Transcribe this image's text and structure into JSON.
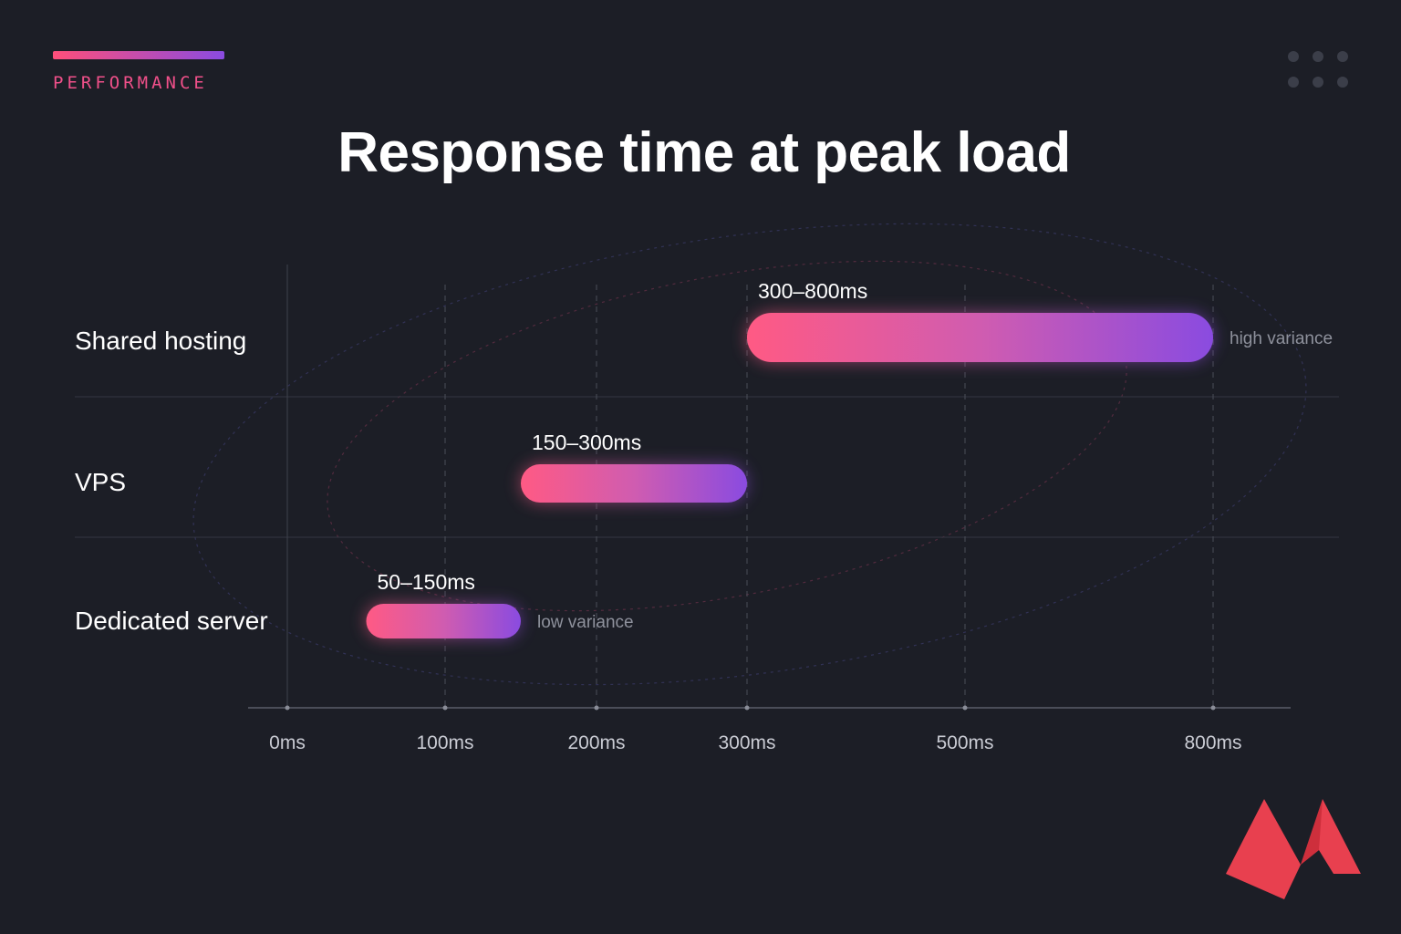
{
  "header": {
    "eyebrow": "PERFORMANCE",
    "title": "Response time at peak load"
  },
  "colors": {
    "background": "#1c1e26",
    "accent_start": "#ff4f7a",
    "accent_end": "#8a4be0",
    "logo": "#e8404f"
  },
  "icons": [
    "dots-grid-icon",
    "brand-logo-icon"
  ],
  "chart_data": {
    "type": "bar",
    "orientation": "horizontal-range",
    "title": "Response time at peak load",
    "categories": [
      "Shared hosting",
      "VPS",
      "Dedicated server"
    ],
    "series": [
      {
        "values": [
          [
            300,
            800
          ],
          [
            150,
            300
          ],
          [
            50,
            150
          ]
        ],
        "labels": [
          "300–800ms",
          "150–300ms",
          "50–150ms"
        ]
      }
    ],
    "annotations": [
      {
        "category": "Shared hosting",
        "text": "high variance"
      },
      {
        "category": "Dedicated server",
        "text": "low variance"
      }
    ],
    "x_ticks": [
      0,
      100,
      200,
      300,
      500,
      800
    ],
    "x_tick_labels": [
      "0ms",
      "100ms",
      "200ms",
      "300ms",
      "500ms",
      "800ms"
    ],
    "x_scale": "piecewise",
    "grid": true,
    "legend": "none"
  }
}
